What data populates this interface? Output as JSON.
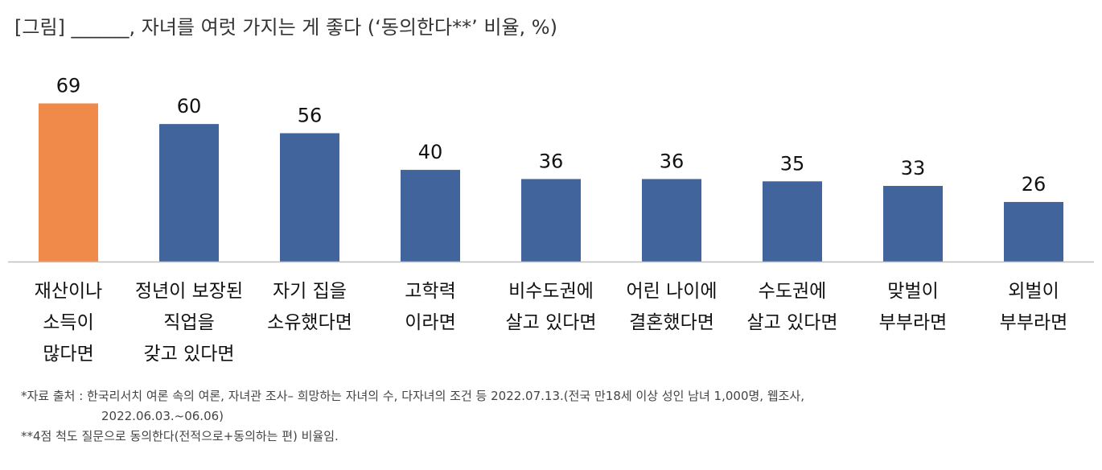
{
  "title": "[그림] ______, 자녀를 여럿 가지는 게 좋다 (‘동의한다**’ 비율, %)",
  "colors": {
    "highlight": "#F08A4B",
    "bar": "#41649D",
    "axis": "#BFBFBF",
    "value_text": "#111111",
    "label_text": "#111111"
  },
  "chart_data": {
    "type": "bar",
    "categories": [
      [
        "재산이나",
        "소득이",
        "많다면"
      ],
      [
        "정년이 보장된",
        "직업을",
        "갖고 있다면"
      ],
      [
        "자기 집을",
        "소유했다면"
      ],
      [
        "고학력",
        "이라면"
      ],
      [
        "비수도권에",
        "살고 있다면"
      ],
      [
        "어린 나이에",
        "결혼했다면"
      ],
      [
        "수도권에",
        "살고 있다면"
      ],
      [
        "맞벌이",
        "부부라면"
      ],
      [
        "외벌이",
        "부부라면"
      ]
    ],
    "values": [
      69,
      60,
      56,
      40,
      36,
      36,
      35,
      33,
      26
    ],
    "highlight_index": 0,
    "ylim": [
      0,
      80
    ],
    "grid": false
  },
  "notes": {
    "line1": "*자료 출처 : 한국리서치 여론 속의 여론, 자녀관 조사– 희망하는 자녀의 수, 다자녀의 조건 등 2022.07.13.(전국 만18세 이상 성인 남녀 1,000명, 웹조사,",
    "line2": "2022.06.03.~06.06)",
    "line3": "**4점 척도 질문으로 동의한다(전적으로+동의하는 편) 비율임."
  }
}
